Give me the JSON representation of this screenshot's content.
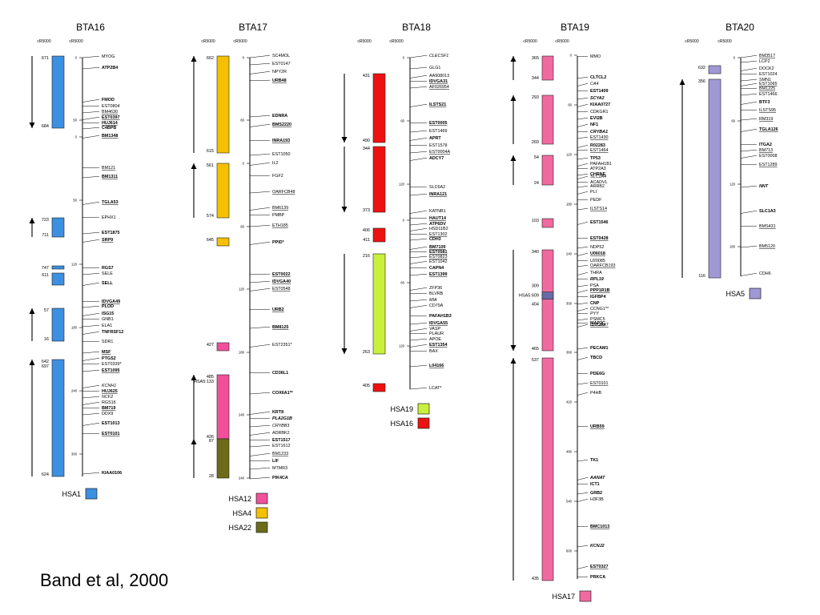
{
  "citation": "Band et al, 2000",
  "unit_left": "cR5000",
  "unit_right": "cR5000",
  "colors": {
    "HSA1": "#3d8fe0",
    "HSA12": "#f0509a",
    "HSA4": "#f5c000",
    "HSA22": "#6b6b1a",
    "HSA19": "#c8f03c",
    "HSA16": "#ee1111",
    "HSA17": "#f06aa0",
    "HSA5": "#a098d6"
  },
  "chromosomes": [
    {
      "name": "BTA16",
      "segments": [
        {
          "hsa": "HSA1",
          "top_label": "671",
          "bottom_label": "684",
          "arrow": "down"
        },
        {
          "hsa": "HSA1",
          "top_label": "723",
          "bottom_label": "711",
          "arrow": "up"
        },
        {
          "hsa": "HSA1",
          "top_label": "747",
          "bottom_label": "",
          "arrow": "none"
        },
        {
          "hsa": "HSA1",
          "top_label": "611",
          "bottom_label": "",
          "arrow": "none"
        },
        {
          "hsa": "HSA1",
          "top_label": "57",
          "bottom_label": "16",
          "arrow": "up"
        },
        {
          "hsa": "HSA1",
          "top_label": "642",
          "bottom_label": "624",
          "arrow": "up",
          "extra_label": "697"
        }
      ],
      "ticks": [
        "0",
        "50",
        "0",
        "50",
        "120",
        "180",
        "240",
        "300"
      ],
      "markers": [
        {
          "text": "MYOG",
          "style": "plain"
        },
        {
          "text": "ATP2B4",
          "style": "bold"
        },
        {
          "text": "FMOD",
          "style": "bold"
        },
        {
          "text": "EST0804",
          "style": "plain"
        },
        {
          "text": "BM4630",
          "style": "underline"
        },
        {
          "text": "EST0397",
          "style": "boldunder"
        },
        {
          "text": "HUJ614",
          "style": "boldunder"
        },
        {
          "text": "C4BPB",
          "style": "bold"
        },
        {
          "text": "BM1348",
          "style": "boldunder"
        },
        {
          "text": "BM121",
          "style": "underline"
        },
        {
          "text": "BM1311",
          "style": "boldunder"
        },
        {
          "text": "TGLA53",
          "style": "boldunder"
        },
        {
          "text": "EPHX1",
          "style": "plain"
        },
        {
          "text": "EST1875",
          "style": "bold"
        },
        {
          "text": "SRP9",
          "style": "boldunder"
        },
        {
          "text": "RGS7",
          "style": "bold"
        },
        {
          "text": "SELE",
          "style": "plain"
        },
        {
          "text": "SELL",
          "style": "bold"
        },
        {
          "text": "IDVGA49",
          "style": "boldunder"
        },
        {
          "text": "PLOD",
          "style": "bold"
        },
        {
          "text": "ISG15",
          "style": "bold"
        },
        {
          "text": "GNB1",
          "style": "plain"
        },
        {
          "text": "ELA1",
          "style": "plain"
        },
        {
          "text": "TNFRSF12",
          "style": "bold"
        },
        {
          "text": "SDR1",
          "style": "plain"
        },
        {
          "text": "MSF",
          "style": "boldunder"
        },
        {
          "text": "PTGS2",
          "style": "bold"
        },
        {
          "text": "EST0339*",
          "style": "plain"
        },
        {
          "text": "EST1095",
          "style": "boldunder"
        },
        {
          "text": "KCNH1",
          "style": "italic"
        },
        {
          "text": "HUJ625",
          "style": "boldunder"
        },
        {
          "text": "NCF2",
          "style": "italic"
        },
        {
          "text": "RGS16",
          "style": "plain"
        },
        {
          "text": "BM719",
          "style": "boldunder"
        },
        {
          "text": "DDX9",
          "style": "plain"
        },
        {
          "text": "EST1013",
          "style": "bold"
        },
        {
          "text": "EST0101",
          "style": "boldunder"
        },
        {
          "text": "KIAA0106",
          "style": "bold"
        }
      ]
    },
    {
      "name": "BTA17",
      "segments": [
        {
          "hsa": "HSA4",
          "top_label": "662",
          "bottom_label": "615",
          "arrow": "up"
        },
        {
          "hsa": "HSA4",
          "top_label": "561",
          "bottom_label": "574",
          "arrow": "up"
        },
        {
          "hsa": "HSA4",
          "top_label": "645",
          "bottom_label": "",
          "arrow": "none"
        },
        {
          "hsa": "HSA12",
          "top_label": "427",
          "bottom_label": "",
          "arrow": "none"
        },
        {
          "hsa": "HSA12",
          "top_label": "485",
          "bottom_label": "426",
          "arrow": "up",
          "extra_label": "HSA5:133"
        },
        {
          "hsa": "HSA22",
          "top_label": "87",
          "bottom_label": "28",
          "arrow": "up"
        }
      ],
      "ticks": [
        "0",
        "60",
        "0",
        "60",
        "120",
        "180",
        "240"
      ],
      "markers": [
        {
          "text": "SC4MOL",
          "style": "plain"
        },
        {
          "text": "EST0147",
          "style": "plain"
        },
        {
          "text": "NPY2R",
          "style": "plain"
        },
        {
          "text": "URB48",
          "style": "boldunder"
        },
        {
          "text": "EDNRA",
          "style": "bold"
        },
        {
          "text": "BMS2220",
          "style": "boldunder"
        },
        {
          "text": "INRA193",
          "style": "boldunder"
        },
        {
          "text": "EST1050",
          "style": "plain"
        },
        {
          "text": "IL2",
          "style": "plain"
        },
        {
          "text": "FGF2",
          "style": "plain"
        },
        {
          "text": "OARFCB48",
          "style": "underline"
        },
        {
          "text": "BM6139",
          "style": "underline"
        },
        {
          "text": "PMBP",
          "style": "plain"
        },
        {
          "text": "ETH185",
          "style": "underline"
        },
        {
          "text": "PPID*",
          "style": "bold"
        },
        {
          "text": "EST0022",
          "style": "boldunder"
        },
        {
          "text": "IDVGA40",
          "style": "boldunder"
        },
        {
          "text": "EST0548",
          "style": "underline"
        },
        {
          "text": "URB2",
          "style": "boldunder"
        },
        {
          "text": "BM8125",
          "style": "boldunder"
        },
        {
          "text": "EST2351*",
          "style": "plain"
        },
        {
          "text": "CD36L1",
          "style": "bold"
        },
        {
          "text": "COX6A1**",
          "style": "bold"
        },
        {
          "text": "KRT8",
          "style": "bold"
        },
        {
          "text": "PLA2G1B",
          "style": "bolditalic"
        },
        {
          "text": "CRYBB3",
          "style": "italic"
        },
        {
          "text": "ADRBK2",
          "style": "plain"
        },
        {
          "text": "EST1517",
          "style": "bold"
        },
        {
          "text": "EST1612",
          "style": "plain"
        },
        {
          "text": "BM1233",
          "style": "underline"
        },
        {
          "text": "LIF",
          "style": "bold"
        },
        {
          "text": "MTMR3",
          "style": "plain"
        },
        {
          "text": "PIK4CA",
          "style": "bold"
        }
      ]
    },
    {
      "name": "BTA18",
      "segments": [
        {
          "hsa": "HSA16",
          "top_label": "431",
          "bottom_label": "490",
          "arrow": "down"
        },
        {
          "hsa": "HSA16",
          "top_label": "344",
          "bottom_label": "373",
          "arrow": "down"
        },
        {
          "hsa": "HSA16",
          "top_label": "406",
          "bottom_label": "411",
          "arrow": "none"
        },
        {
          "hsa": "HSA19",
          "top_label": "216",
          "bottom_label": "263",
          "arrow": "down"
        },
        {
          "hsa": "HSA16",
          "top_label": "405",
          "bottom_label": "",
          "arrow": "none"
        }
      ],
      "ticks": [
        "0",
        "60",
        "120",
        "0",
        "60",
        "120"
      ],
      "markers": [
        {
          "text": "CLECSF1",
          "style": "italic"
        },
        {
          "text": "GLG1",
          "style": "plain"
        },
        {
          "text": "AA908013",
          "style": "plain"
        },
        {
          "text": "IDVGA31",
          "style": "boldunder"
        },
        {
          "text": "AF026954",
          "style": "underline"
        },
        {
          "text": "ILSTS21",
          "style": "boldunder"
        },
        {
          "text": "EST0005",
          "style": "boldunder"
        },
        {
          "text": "EST1469",
          "style": "plain"
        },
        {
          "text": "APRT",
          "style": "bold"
        },
        {
          "text": "EST1578",
          "style": "plain"
        },
        {
          "text": "EST0004A",
          "style": "underline"
        },
        {
          "text": "ADCY7",
          "style": "bold"
        },
        {
          "text": "SLC6A2",
          "style": "plain"
        },
        {
          "text": "INRA121",
          "style": "boldunder"
        },
        {
          "text": "KATNB1",
          "style": "plain"
        },
        {
          "text": "HAUT14",
          "style": "boldunder"
        },
        {
          "text": "ATP6DV",
          "style": "bold"
        },
        {
          "text": "HSD11B2",
          "style": "plain"
        },
        {
          "text": "EST1302",
          "style": "underline"
        },
        {
          "text": "CDH3",
          "style": "bold"
        },
        {
          "text": "BM7109",
          "style": "boldunder"
        },
        {
          "text": "EST0581",
          "style": "boldunder"
        },
        {
          "text": "EST0823",
          "style": "underline"
        },
        {
          "text": "EST1042",
          "style": "plain"
        },
        {
          "text": "CAPN4",
          "style": "bold"
        },
        {
          "text": "EST1399",
          "style": "boldunder"
        },
        {
          "text": "ZFP36",
          "style": "plain"
        },
        {
          "text": "BLVRB",
          "style": "plain"
        },
        {
          "text": "MIA",
          "style": "italic"
        },
        {
          "text": "CD79A",
          "style": "plain"
        },
        {
          "text": "PAFAH1B3",
          "style": "bold"
        },
        {
          "text": "IDVGA55",
          "style": "boldunder"
        },
        {
          "text": "VASP",
          "style": "italic"
        },
        {
          "text": "PLAUR",
          "style": "plain"
        },
        {
          "text": "APOE",
          "style": "plain"
        },
        {
          "text": "EST1354",
          "style": "boldunder"
        },
        {
          "text": "BAX",
          "style": "plain"
        },
        {
          "text": "L04166",
          "style": "boldunder"
        },
        {
          "text": "LCAT*",
          "style": "plain"
        }
      ]
    },
    {
      "name": "BTA19",
      "segments": [
        {
          "hsa": "HSA17",
          "top_label": "365",
          "bottom_label": "344",
          "arrow": "up"
        },
        {
          "hsa": "HSA17",
          "top_label": "293",
          "bottom_label": "269",
          "arrow": "up"
        },
        {
          "hsa": "HSA17",
          "top_label": "54",
          "bottom_label": "24",
          "arrow": "up"
        },
        {
          "hsa": "HSA17",
          "top_label": "103",
          "bottom_label": "",
          "arrow": "none"
        },
        {
          "hsa": "HSA17",
          "top_label": "340",
          "bottom_label": "465",
          "arrow": "down",
          "extra_label": "309",
          "extra_label2": "HSA5:609",
          "extra_label3": "404"
        },
        {
          "hsa": "HSA17",
          "top_label": "537",
          "bottom_label": "435",
          "arrow": "up"
        }
      ],
      "ticks": [
        "0",
        "60",
        "120",
        "180",
        "240",
        "300",
        "360",
        "420",
        "480",
        "540",
        "600"
      ],
      "markers": [
        {
          "text": "MMO",
          "style": "plain"
        },
        {
          "text": "CLTCL2",
          "style": "bold"
        },
        {
          "text": "CA4",
          "style": "italic"
        },
        {
          "text": "EST1409",
          "style": "bold"
        },
        {
          "text": "SCYA2",
          "style": "bolditalic"
        },
        {
          "text": "KIAA0727",
          "style": "bold"
        },
        {
          "text": "CDKGR1",
          "style": "plain"
        },
        {
          "text": "EVI2B",
          "style": "bold"
        },
        {
          "text": "NF1",
          "style": "bold"
        },
        {
          "text": "CRYBA1",
          "style": "bolditalic"
        },
        {
          "text": "EST1430",
          "style": "underline"
        },
        {
          "text": "R02283",
          "style": "bold"
        },
        {
          "text": "EST1464",
          "style": "underline"
        },
        {
          "text": "TP53",
          "style": "bold"
        },
        {
          "text": "PAFAH1B1",
          "style": "plain"
        },
        {
          "text": "ATP2A3",
          "style": "plain"
        },
        {
          "text": "CHRNE",
          "style": "bold"
        },
        {
          "text": "SLC2A4",
          "style": "italic"
        },
        {
          "text": "ACADVL",
          "style": "plain"
        },
        {
          "text": "ARRB2",
          "style": "plain"
        },
        {
          "text": "PLI",
          "style": "plain"
        },
        {
          "text": "PEDF",
          "style": "plain"
        },
        {
          "text": "ILSTS14",
          "style": "underline"
        },
        {
          "text": "EST1546",
          "style": "bold"
        },
        {
          "text": "EST0428",
          "style": "boldunder"
        },
        {
          "text": "NDP52",
          "style": "plain"
        },
        {
          "text": "U06018",
          "style": "boldunder"
        },
        {
          "text": "U20085",
          "style": "plain"
        },
        {
          "text": "OARFCB193",
          "style": "underline"
        },
        {
          "text": "THRA",
          "style": "plain"
        },
        {
          "text": "RPL19",
          "style": "bolditalic"
        },
        {
          "text": "PSA",
          "style": "plain"
        },
        {
          "text": "PPP1R1B",
          "style": "boldunder"
        },
        {
          "text": "IGFBP4",
          "style": "bold"
        },
        {
          "text": "CNP",
          "style": "bold"
        },
        {
          "text": "CCNG1**",
          "style": "plain"
        },
        {
          "text": "PYY",
          "style": "italic"
        },
        {
          "text": "PSMC5",
          "style": "plain"
        },
        {
          "text": "IDVGA47",
          "style": "underline"
        },
        {
          "text": "MAP2C",
          "style": "boldunder"
        },
        {
          "text": "PECAM1",
          "style": "bold"
        },
        {
          "text": "TBCD",
          "style": "bold"
        },
        {
          "text": "PDE6G",
          "style": "bold"
        },
        {
          "text": "EST0101",
          "style": "underline"
        },
        {
          "text": "P4HB",
          "style": "plain"
        },
        {
          "text": "URB59",
          "style": "boldunder"
        },
        {
          "text": "TK1",
          "style": "bold"
        },
        {
          "text": "AANAT",
          "style": "bolditalic"
        },
        {
          "text": "ICT1",
          "style": "bold"
        },
        {
          "text": "GRB2",
          "style": "bold"
        },
        {
          "text": "H3F3B",
          "style": "plain"
        },
        {
          "text": "BMC1013",
          "style": "boldunder"
        },
        {
          "text": "KCNJ2",
          "style": "bolditalic"
        },
        {
          "text": "EST0327",
          "style": "boldunder"
        },
        {
          "text": "PRKCA",
          "style": "bold"
        }
      ]
    },
    {
      "name": "BTA20",
      "segments": [
        {
          "hsa": "HSA5",
          "top_label": "632",
          "bottom_label": "",
          "arrow": "none"
        },
        {
          "hsa": "HSA5",
          "top_label": "356",
          "bottom_label": "116",
          "arrow": "up"
        }
      ],
      "ticks": [
        "0",
        "60",
        "120",
        "180"
      ],
      "markers": [
        {
          "text": "BM3517",
          "style": "underline"
        },
        {
          "text": "LCP2",
          "style": "plain"
        },
        {
          "text": "DOCK2",
          "style": "plain"
        },
        {
          "text": "EST1024",
          "style": "plain"
        },
        {
          "text": "SMN1",
          "style": "plain"
        },
        {
          "text": "EST1065",
          "style": "underline"
        },
        {
          "text": "BM1225",
          "style": "underline"
        },
        {
          "text": "EST1466",
          "style": "plain"
        },
        {
          "text": "BTF3",
          "style": "bold"
        },
        {
          "text": "ILSTS95",
          "style": "underline"
        },
        {
          "text": "RM319",
          "style": "underline"
        },
        {
          "text": "TGLA126",
          "style": "boldunder"
        },
        {
          "text": "ITGA2",
          "style": "bold"
        },
        {
          "text": "BM713",
          "style": "underline"
        },
        {
          "text": "EST0008",
          "style": "plain"
        },
        {
          "text": "EST1289",
          "style": "underline"
        },
        {
          "text": "NNT",
          "style": "bolditalic"
        },
        {
          "text": "SLC1A3",
          "style": "bold"
        },
        {
          "text": "BMS431",
          "style": "underline"
        },
        {
          "text": "BM5120",
          "style": "underline"
        },
        {
          "text": "CDH6",
          "style": "plain"
        }
      ]
    }
  ],
  "legends": [
    {
      "hsa": "HSA1"
    },
    {
      "hsa": "HSA12"
    },
    {
      "hsa": "HSA4"
    },
    {
      "hsa": "HSA22"
    },
    {
      "hsa": "HSA19"
    },
    {
      "hsa": "HSA16"
    },
    {
      "hsa": "HSA17"
    },
    {
      "hsa": "HSA5"
    }
  ]
}
